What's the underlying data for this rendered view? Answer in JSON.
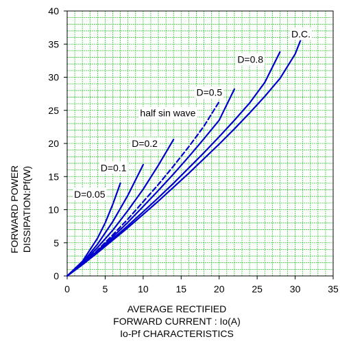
{
  "chart_data": {
    "type": "line",
    "xlabel_lines": [
      "AVERAGE RECTIFIED",
      "FORWARD CURRENT : Io(A)"
    ],
    "caption": "Io-Pf CHARACTERISTICS",
    "ylabel_lines": [
      "FORWARD POWER",
      "DISSIPATION:Pf(W)"
    ],
    "xlim": [
      0,
      35
    ],
    "ylim": [
      0,
      40
    ],
    "xticks": [
      "0",
      "5",
      "10",
      "15",
      "20",
      "25",
      "30",
      "35"
    ],
    "yticks": [
      "0",
      "5",
      "10",
      "15",
      "20",
      "25",
      "30",
      "35",
      "40"
    ],
    "grid": true,
    "grid_color": "#33cc33",
    "line_color": "#0000cc",
    "series": [
      {
        "name": "D=0.05",
        "style": "solid",
        "x": [
          0,
          2,
          4,
          5,
          6,
          7
        ],
        "y": [
          0,
          2.2,
          5.7,
          8.0,
          10.8,
          14.0
        ]
      },
      {
        "name": "D=0.1",
        "style": "solid",
        "x": [
          0,
          2,
          4,
          6,
          8,
          10
        ],
        "y": [
          0,
          2.0,
          4.8,
          8.2,
          12.2,
          16.8
        ]
      },
      {
        "name": "D=0.2",
        "style": "solid",
        "x": [
          0,
          2,
          4,
          6,
          8,
          10,
          12,
          14
        ],
        "y": [
          0,
          1.9,
          4.3,
          6.9,
          9.9,
          13.1,
          16.7,
          20.6
        ]
      },
      {
        "name": "half sin wave",
        "style": "dashed",
        "x": [
          0,
          2,
          4,
          6,
          8,
          10,
          12,
          14,
          16,
          18,
          20
        ],
        "y": [
          0,
          1.8,
          3.9,
          6.2,
          8.6,
          11.2,
          13.8,
          16.6,
          19.5,
          22.6,
          26.3
        ]
      },
      {
        "name": "D=0.5",
        "style": "solid",
        "x": [
          0,
          2,
          4,
          6,
          8,
          10,
          12,
          14,
          16,
          18,
          20,
          22
        ],
        "y": [
          0,
          1.8,
          3.8,
          5.9,
          8.1,
          10.5,
          12.9,
          15.4,
          18.0,
          20.7,
          23.5,
          28.2
        ]
      },
      {
        "name": "D=0.8",
        "style": "solid",
        "x": [
          0,
          2,
          4,
          6,
          8,
          10,
          12,
          14,
          16,
          18,
          20,
          22,
          24,
          26,
          28
        ],
        "y": [
          0,
          1.7,
          3.6,
          5.6,
          7.6,
          9.7,
          11.8,
          14.0,
          16.3,
          18.6,
          21.0,
          23.5,
          26.1,
          29.2,
          33.8
        ]
      },
      {
        "name": "D.C.",
        "style": "solid",
        "x": [
          0,
          2,
          4,
          6,
          8,
          10,
          12,
          14,
          16,
          18,
          20,
          22,
          24,
          26,
          28,
          30,
          31.2
        ],
        "y": [
          0,
          1.7,
          3.5,
          5.4,
          7.3,
          9.3,
          11.3,
          13.4,
          15.5,
          17.7,
          19.9,
          22.2,
          24.6,
          27.1,
          29.8,
          33.5,
          37.0
        ]
      }
    ],
    "annotations": [
      {
        "text": "D.C.",
        "x": 29.5,
        "y": 36.0
      },
      {
        "text": "D=0.8",
        "x": 22.4,
        "y": 32.2
      },
      {
        "text": "D=0.5",
        "x": 17.0,
        "y": 27.2
      },
      {
        "text": "half sin wave",
        "x": 9.6,
        "y": 24.1
      },
      {
        "text": "D=0.2",
        "x": 8.5,
        "y": 19.5
      },
      {
        "text": "D=0.1",
        "x": 4.4,
        "y": 15.8
      },
      {
        "text": "D=0.05",
        "x": 0.9,
        "y": 11.8
      }
    ]
  }
}
